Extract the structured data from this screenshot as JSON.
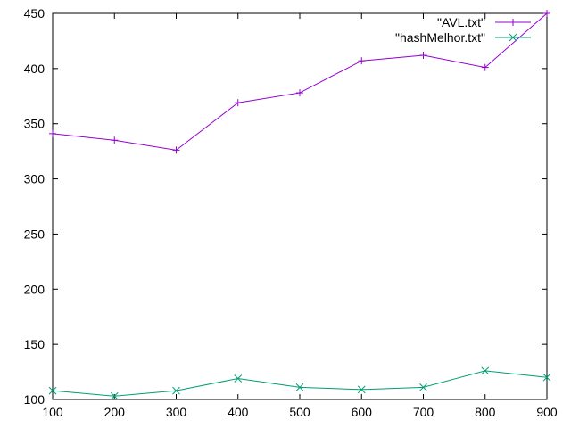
{
  "chart_data": {
    "type": "line",
    "title": "",
    "xlabel": "",
    "ylabel": "",
    "x": [
      100,
      200,
      300,
      400,
      500,
      600,
      700,
      800,
      900
    ],
    "xlim": [
      100,
      900
    ],
    "ylim": [
      100,
      450
    ],
    "xticks": [
      "100",
      "200",
      "300",
      "400",
      "500",
      "600",
      "700",
      "800",
      "900"
    ],
    "yticks": [
      "100",
      "150",
      "200",
      "250",
      "300",
      "350",
      "400",
      "450"
    ],
    "grid": false,
    "legend_position": "top-right",
    "series": [
      {
        "name": "\"AVL.txt\"",
        "color": "#9400d3",
        "marker": "plus",
        "values": [
          341,
          335,
          326,
          369,
          378,
          407,
          412,
          401,
          450
        ]
      },
      {
        "name": "\"hashMelhor.txt\"",
        "color": "#009e73",
        "marker": "cross",
        "values": [
          108,
          103,
          108,
          119,
          111,
          109,
          111,
          126,
          120
        ]
      }
    ]
  }
}
